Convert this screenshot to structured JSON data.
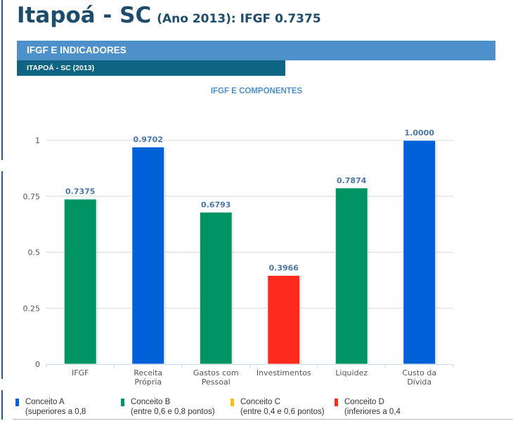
{
  "header": {
    "title_main": "Itapoá - SC",
    "title_sub": "(Ano 2013): IFGF  0.7375"
  },
  "section": {
    "primary_label": "IFGF E INDICADORES",
    "secondary_label": "ITAPOÁ - SC (2013)"
  },
  "colors": {
    "conceito_a": "#0060d8",
    "conceito_b": "#009465",
    "conceito_c": "#fbbe11",
    "conceito_d": "#ff2a1e",
    "data_label": "#4876a8",
    "gridline": "#d8d8d8",
    "axis": "#c7d8ea"
  },
  "chart_data": {
    "type": "bar",
    "title": "IFGF E COMPONENTES",
    "xlabel": "",
    "ylabel": "",
    "ylim": [
      0,
      1
    ],
    "yticks": [
      "0",
      "0.25",
      "0.5",
      "0.75",
      "1"
    ],
    "ytick_values": [
      0,
      0.25,
      0.5,
      0.75,
      1
    ],
    "grid": true,
    "legend_position": "bottom",
    "categories": [
      [
        "IFGF"
      ],
      [
        "Receita",
        "Própria"
      ],
      [
        "Gastos com",
        "Pessoal"
      ],
      [
        "Investimentos"
      ],
      [
        "Liquidez"
      ],
      [
        "Custo da",
        "Dívida"
      ]
    ],
    "values": [
      0.7375,
      0.9702,
      0.6793,
      0.3966,
      0.7874,
      1.0
    ],
    "data_labels": [
      "0.7375",
      "0.9702",
      "0.6793",
      "0.3966",
      "0.7874",
      "1.0000"
    ],
    "bar_concepts": [
      "B",
      "A",
      "B",
      "D",
      "B",
      "A"
    ]
  },
  "legend": [
    {
      "concept": "A",
      "line1": "Conceito A",
      "line2": "(superiores a 0,8"
    },
    {
      "concept": "B",
      "line1": "Conceito B",
      "line2": "(entre 0,6 e 0,8 pontos)"
    },
    {
      "concept": "C",
      "line1": "Conceito C",
      "line2": "(entre 0,4 e 0,6 pontos)"
    },
    {
      "concept": "D",
      "line1": "Conceito D",
      "line2": "(inferiores a 0,4"
    }
  ]
}
